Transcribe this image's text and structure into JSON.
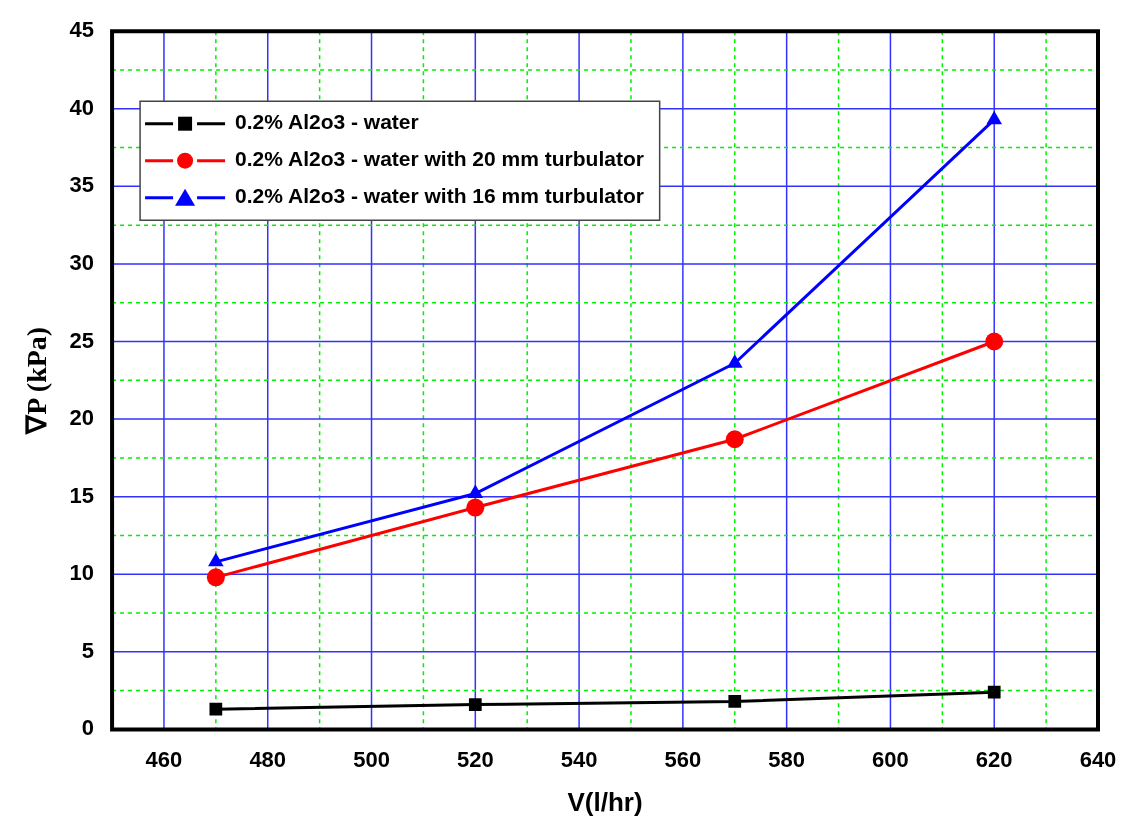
{
  "chart_data": {
    "type": "line",
    "xlabel": "V(l/hr)",
    "ylabel": "∇P (kPa)",
    "x": [
      470,
      520,
      570,
      620
    ],
    "xlim": [
      450,
      640
    ],
    "xticks": [
      {
        "value": 450,
        "label": null
      },
      460,
      {
        "value": 470,
        "label": null
      },
      480,
      {
        "value": 490,
        "label": null
      },
      500,
      {
        "value": 510,
        "label": null
      },
      520,
      {
        "value": 530,
        "label": null
      },
      540,
      {
        "value": 550,
        "label": null
      },
      560,
      {
        "value": 570,
        "label": null
      },
      580,
      {
        "value": 590,
        "label": null
      },
      600,
      {
        "value": 610,
        "label": null
      },
      620,
      {
        "value": 630,
        "label": null
      },
      640
    ],
    "ylim": [
      0,
      45
    ],
    "yticks": [
      0,
      {
        "value": 2.5,
        "label": null
      },
      5,
      {
        "value": 7.5,
        "label": null
      },
      10,
      {
        "value": 12.5,
        "label": null
      },
      15,
      {
        "value": 17.5,
        "label": null
      },
      20,
      {
        "value": 22.5,
        "label": null
      },
      25,
      {
        "value": 27.5,
        "label": null
      },
      30,
      {
        "value": 32.5,
        "label": null
      },
      35,
      {
        "value": 37.5,
        "label": null
      },
      40,
      {
        "value": 42.5,
        "label": null
      },
      45
    ],
    "grid": true,
    "legend": "top left",
    "line_style": "solid",
    "series": [
      {
        "name": "0.2% Al2o3 - water",
        "color": "#000000",
        "marker": "square",
        "values": [
          1.3,
          1.6,
          1.8,
          2.4
        ]
      },
      {
        "name": "0.2% Al2o3 - water with 20 mm turbulator",
        "color": "#ff0000",
        "marker": "circle",
        "values": [
          9.8,
          14.3,
          18.7,
          25.0
        ]
      },
      {
        "name": "0.2% Al2o3 - water with 16 mm turbulator",
        "color": "#0000ff",
        "marker": "triangle",
        "values": [
          10.8,
          15.2,
          23.6,
          39.3
        ]
      }
    ]
  }
}
